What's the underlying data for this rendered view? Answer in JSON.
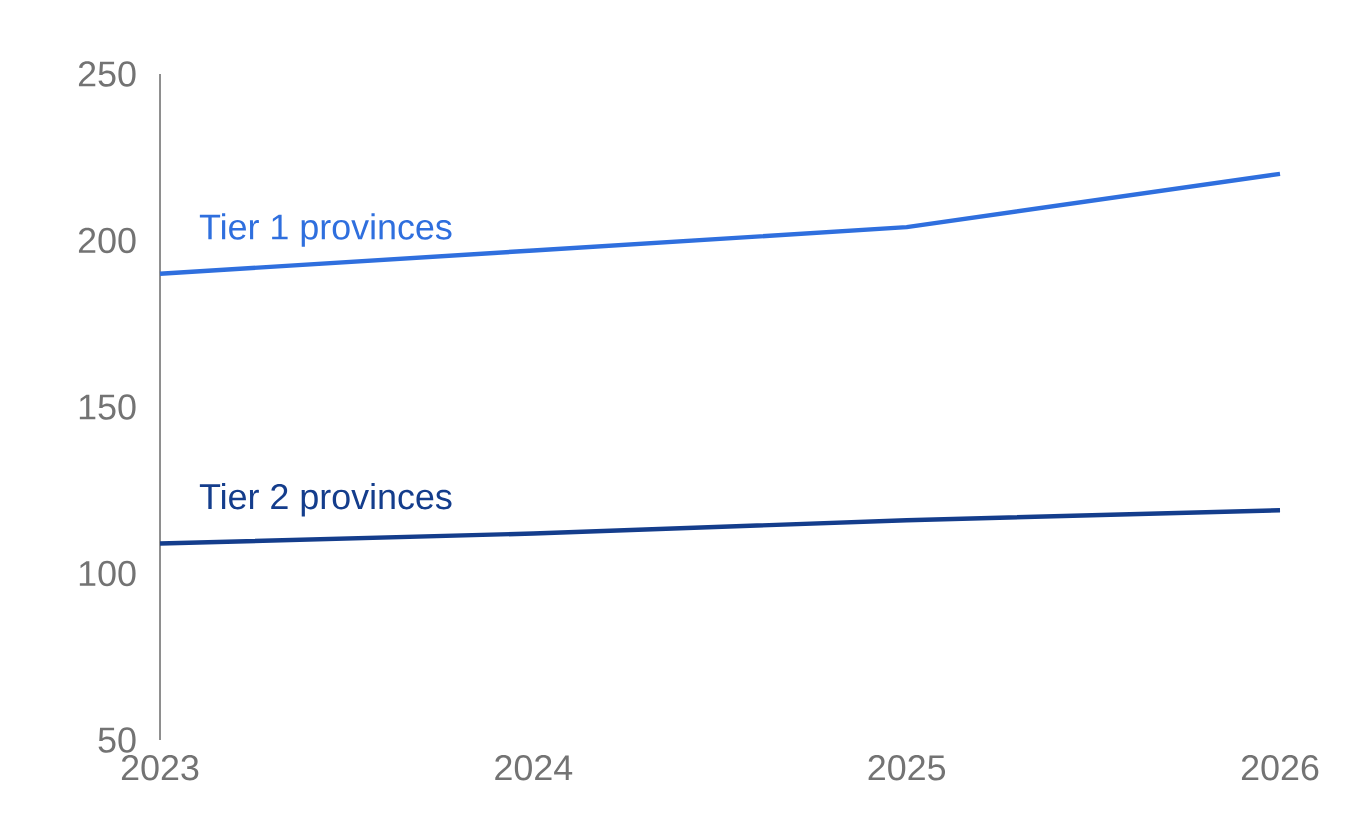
{
  "chart_data": {
    "type": "line",
    "x": [
      2023,
      2024,
      2025,
      2026
    ],
    "xlim": [
      2023,
      2026
    ],
    "xticks": [
      2023,
      2024,
      2025,
      2026
    ],
    "ylim": [
      50,
      250
    ],
    "yticks": [
      50,
      100,
      150,
      200,
      250
    ],
    "grid": false,
    "legend": false,
    "series": [
      {
        "name": "Tier 1 provinces",
        "color": "#2f6fde",
        "values": [
          190,
          197,
          204,
          220
        ]
      },
      {
        "name": "Tier 2 provinces",
        "color": "#143d8c",
        "values": [
          109,
          112,
          116,
          119
        ]
      }
    ]
  }
}
